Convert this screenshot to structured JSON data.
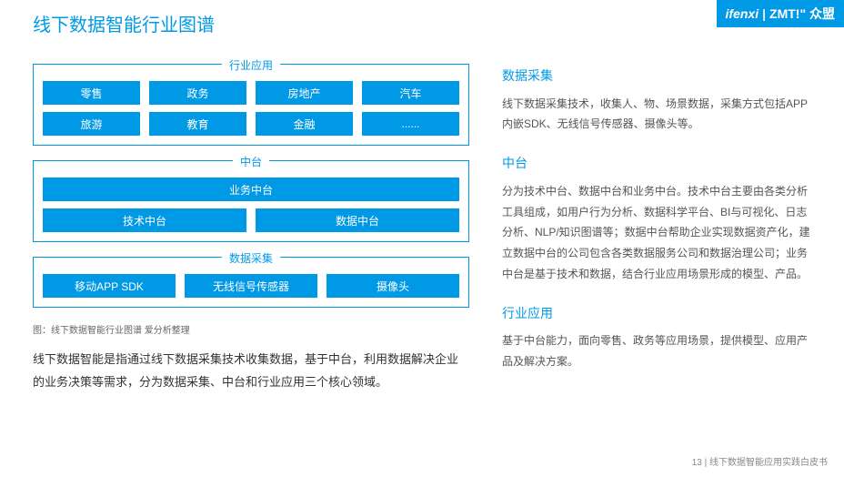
{
  "colors": {
    "accent": "#0099e5",
    "panel_border": "#0099e5",
    "box_bg": "#0099e5",
    "box_text": "#ffffff",
    "body_text": "#555555",
    "title_text": "#0099e5",
    "footer_text": "#888888",
    "background": "#ffffff"
  },
  "title": "线下数据智能行业图谱",
  "logos": {
    "left": "ifenxi",
    "right": "ZMT!\" 众盟"
  },
  "diagram": {
    "panels": [
      {
        "label": "行业应用",
        "rows": [
          [
            "零售",
            "政务",
            "房地产",
            "汽车"
          ],
          [
            "旅游",
            "教育",
            "金融",
            "......"
          ]
        ]
      },
      {
        "label": "中台",
        "rows": [
          [
            "业务中台"
          ],
          [
            "技术中台",
            "数据中台"
          ]
        ]
      },
      {
        "label": "数据采集",
        "rows": [
          [
            "移动APP SDK",
            "无线信号传感器",
            "摄像头"
          ]
        ]
      }
    ],
    "caption": "图：线下数据智能行业图谱  爱分析整理"
  },
  "summary": "线下数据智能是指通过线下数据采集技术收集数据，基于中台，利用数据解决企业的业务决策等需求，分为数据采集、中台和行业应用三个核心领域。",
  "sections": [
    {
      "title": "数据采集",
      "body": "线下数据采集技术，收集人、物、场景数据，采集方式包括APP内嵌SDK、无线信号传感器、摄像头等。"
    },
    {
      "title": "中台",
      "body": "分为技术中台、数据中台和业务中台。技术中台主要由各类分析工具组成，如用户行为分析、数据科学平台、BI与可视化、日志分析、NLP/知识图谱等；数据中台帮助企业实现数据资产化，建立数据中台的公司包含各类数据服务公司和数据治理公司；业务中台是基于技术和数据，结合行业应用场景形成的模型、产品。"
    },
    {
      "title": "行业应用",
      "body": "基于中台能力，面向零售、政务等应用场景，提供模型、应用产品及解决方案。"
    }
  ],
  "footer": "13 | 线下数据智能应用实践白皮书"
}
